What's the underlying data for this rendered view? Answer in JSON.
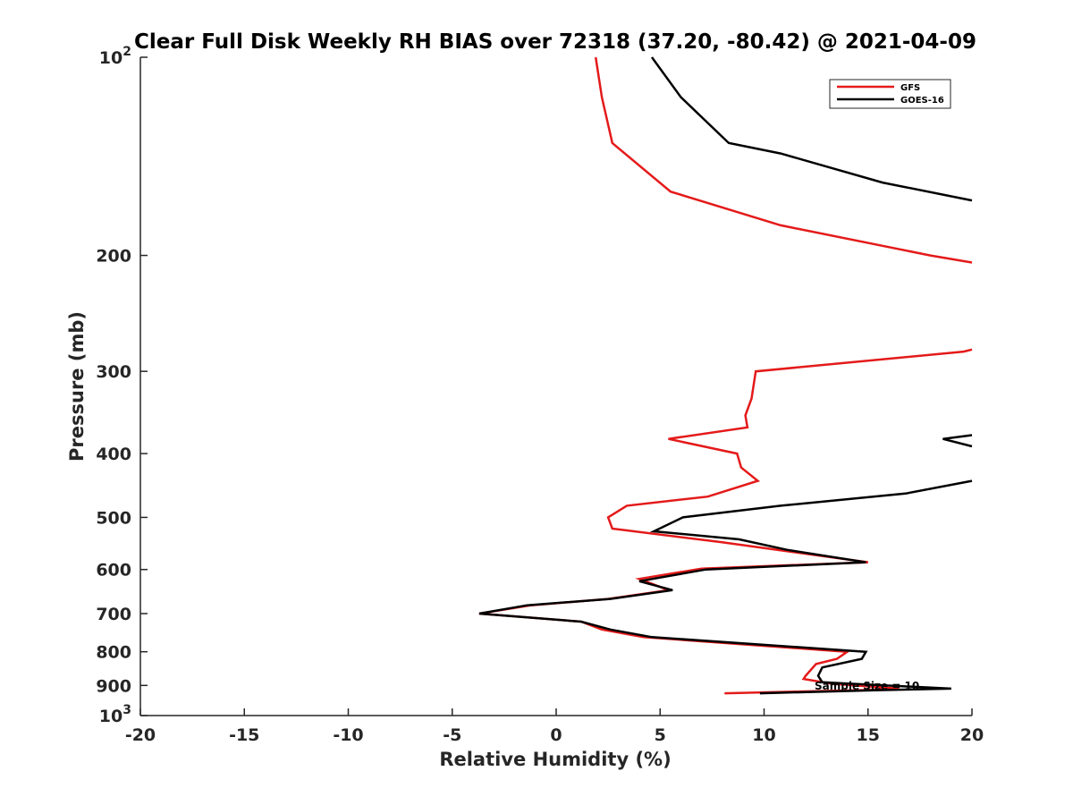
{
  "chart_data": {
    "type": "line",
    "title": "Clear Full Disk Weekly RH BIAS over 72318 (37.20, -80.42) @ 2021-04-09",
    "xlabel": "Relative Humidity (%)",
    "ylabel": "Pressure (mb)",
    "xlim": [
      -20,
      20
    ],
    "ylim": [
      100,
      1000
    ],
    "y_scale": "log",
    "y_reversed": true,
    "grid": false,
    "legend_position": "top-right",
    "x_ticks": [
      -20,
      -15,
      -10,
      -5,
      0,
      5,
      10,
      15,
      20
    ],
    "x_tick_labels": [
      "-20",
      "-15",
      "-10",
      "-5",
      "0",
      "5",
      "10",
      "15",
      "20"
    ],
    "y_ticks": [
      100,
      200,
      300,
      400,
      500,
      600,
      700,
      800,
      900,
      1000
    ],
    "y_tick_labels": [
      {
        "base": "10",
        "exp": "2"
      },
      {
        "base": "200",
        "exp": ""
      },
      {
        "base": "300",
        "exp": ""
      },
      {
        "base": "400",
        "exp": ""
      },
      {
        "base": "500",
        "exp": ""
      },
      {
        "base": "600",
        "exp": ""
      },
      {
        "base": "700",
        "exp": ""
      },
      {
        "base": "800",
        "exp": ""
      },
      {
        "base": "900",
        "exp": ""
      },
      {
        "base": "10",
        "exp": "3"
      }
    ],
    "annotation": "Sample Size = 10",
    "series": [
      {
        "name": "GFS",
        "color": "#e41a1a",
        "segments": [
          [
            [
              1.9,
              100
            ],
            [
              2.2,
              115
            ],
            [
              2.7,
              135
            ],
            [
              5.5,
              160
            ],
            [
              10.8,
              180
            ],
            [
              18.0,
              200
            ],
            [
              20.0,
              205
            ]
          ],
          [
            [
              20.0,
              278
            ],
            [
              19.6,
              280
            ],
            [
              9.6,
              300
            ],
            [
              9.4,
              330
            ],
            [
              9.1,
              350
            ],
            [
              9.2,
              365
            ],
            [
              5.4,
              380
            ],
            [
              8.7,
              400
            ],
            [
              8.9,
              420
            ],
            [
              9.7,
              440
            ],
            [
              7.3,
              465
            ],
            [
              3.4,
              480
            ],
            [
              2.5,
              500
            ],
            [
              2.7,
              520
            ],
            [
              7.9,
              545
            ],
            [
              11.5,
              565
            ],
            [
              15.0,
              585
            ],
            [
              7.0,
              598
            ],
            [
              4.0,
              620
            ],
            [
              5.4,
              645
            ],
            [
              2.5,
              665
            ],
            [
              -1.2,
              680
            ],
            [
              -3.7,
              700
            ],
            [
              1.2,
              720
            ],
            [
              2.2,
              740
            ],
            [
              4.2,
              760
            ],
            [
              14.0,
              800
            ],
            [
              13.5,
              820
            ],
            [
              12.5,
              835
            ],
            [
              12.0,
              870
            ],
            [
              11.9,
              880
            ],
            [
              13.3,
              895
            ],
            [
              16.5,
              910
            ],
            [
              14.7,
              915
            ],
            [
              8.1,
              925
            ]
          ]
        ]
      },
      {
        "name": "GOES-16",
        "color": "#000000",
        "segments": [
          [
            [
              4.6,
              100
            ],
            [
              6.0,
              115
            ],
            [
              8.3,
              135
            ],
            [
              10.8,
              140
            ],
            [
              15.7,
              155
            ],
            [
              20.0,
              165
            ]
          ],
          [
            [
              20.0,
              375
            ],
            [
              18.6,
              380
            ],
            [
              20.0,
              390
            ]
          ],
          [
            [
              20.0,
              440
            ],
            [
              16.8,
              460
            ],
            [
              10.8,
              480
            ],
            [
              6.1,
              500
            ],
            [
              4.7,
              525
            ],
            [
              8.8,
              540
            ],
            [
              11.1,
              560
            ],
            [
              14.9,
              585
            ],
            [
              7.2,
              600
            ],
            [
              4.0,
              625
            ],
            [
              5.6,
              645
            ],
            [
              2.6,
              665
            ],
            [
              -1.4,
              680
            ],
            [
              -3.7,
              700
            ],
            [
              1.2,
              720
            ],
            [
              2.6,
              740
            ],
            [
              4.6,
              760
            ],
            [
              14.9,
              800
            ],
            [
              14.7,
              820
            ],
            [
              12.8,
              845
            ],
            [
              12.6,
              870
            ],
            [
              12.8,
              890
            ],
            [
              19.0,
              910
            ],
            [
              15.5,
              915
            ],
            [
              9.8,
              925
            ]
          ]
        ]
      }
    ]
  }
}
